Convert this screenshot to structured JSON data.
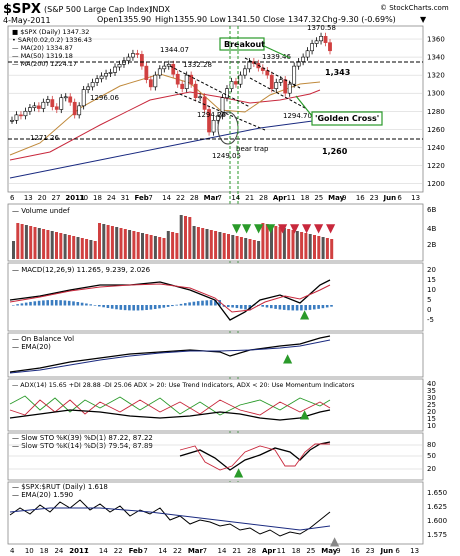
{
  "header": {
    "symbol": "$SPX",
    "name": "(S&P 500 Large Cap Index)",
    "exchange": "INDX",
    "date": "4-May-2011",
    "open_label": "Open",
    "open": "1355.90",
    "high_label": "High",
    "high": "1355.90",
    "low_label": "Low",
    "low": "1341.50",
    "close_label": "Close",
    "close": "1347.32",
    "change_label": "Chg",
    "change": "-9.30 (-0.69%)",
    "watermark": "© StockCharts.com"
  },
  "legend_main": [
    {
      "text": "■ $SPX (Daily) 1347.32",
      "color": "#000000"
    },
    {
      "text": "• SAR(0.02,0.2) 1336.43",
      "color": "#000000"
    },
    {
      "text": "— MA(20) 1334.87",
      "color": "#c08a3c"
    },
    {
      "text": "— MA(50) 1319.18",
      "color": "#c8283c"
    },
    {
      "text": "— MA(200) 1224.17",
      "color": "#1a2a80"
    }
  ],
  "price_annotations": [
    {
      "text": "1344.07"
    },
    {
      "text": "1332.28"
    },
    {
      "text": "1296.06"
    },
    {
      "text": "1294.26"
    },
    {
      "text": "1271.26"
    },
    {
      "text": "1249.05"
    },
    {
      "text": "1339.46"
    },
    {
      "text": "1294.70"
    },
    {
      "text": "1370.58"
    }
  ],
  "callouts": {
    "breakout": "Breakout",
    "golden_cross": "'Golden Cross'",
    "bear_trap": "bear trap",
    "level_1343": "1,343",
    "level_1260": "1,260"
  },
  "price_axis": [
    "1360",
    "1340",
    "1320",
    "1300",
    "1280",
    "1260",
    "1240",
    "1220",
    "1200"
  ],
  "x_labels": [
    {
      "text": "6"
    },
    {
      "text": "13"
    },
    {
      "text": "20"
    },
    {
      "text": "27"
    },
    {
      "text": "2011",
      "bold": true
    },
    {
      "text": "10"
    },
    {
      "text": "18"
    },
    {
      "text": "24"
    },
    {
      "text": "31"
    },
    {
      "text": "Feb",
      "bold": true
    },
    {
      "text": "7"
    },
    {
      "text": "14"
    },
    {
      "text": "22"
    },
    {
      "text": "28"
    },
    {
      "text": "Mar",
      "bold": true
    },
    {
      "text": "7"
    },
    {
      "text": "14"
    },
    {
      "text": "21"
    },
    {
      "text": "28"
    },
    {
      "text": "Apr",
      "bold": true
    },
    {
      "text": "11"
    },
    {
      "text": "18"
    },
    {
      "text": "25"
    },
    {
      "text": "May",
      "bold": true
    },
    {
      "text": "9"
    },
    {
      "text": "16"
    },
    {
      "text": "23"
    },
    {
      "text": "Jun",
      "bold": true
    },
    {
      "text": "6"
    },
    {
      "text": "13"
    }
  ],
  "x_labels_bottom": [
    {
      "text": "4"
    },
    {
      "text": "10"
    },
    {
      "text": "18"
    },
    {
      "text": "24"
    },
    {
      "text": "2011",
      "bold": true
    },
    {
      "text": "7"
    },
    {
      "text": "14"
    },
    {
      "text": "22"
    },
    {
      "text": "Feb",
      "bold": true
    },
    {
      "text": "7"
    },
    {
      "text": "14"
    },
    {
      "text": "22"
    },
    {
      "text": "Mar",
      "bold": true
    },
    {
      "text": "7"
    },
    {
      "text": "14"
    },
    {
      "text": "21"
    },
    {
      "text": "28"
    },
    {
      "text": "Apr",
      "bold": true
    },
    {
      "text": "11"
    },
    {
      "text": "18"
    },
    {
      "text": "25"
    },
    {
      "text": "May",
      "bold": true
    },
    {
      "text": "9"
    },
    {
      "text": "16"
    },
    {
      "text": "23"
    },
    {
      "text": "Jun",
      "bold": true
    },
    {
      "text": "6"
    },
    {
      "text": "13"
    }
  ],
  "panels": {
    "volume": {
      "label": "— Volume undef",
      "axis": [
        "6B",
        "4B",
        "2B"
      ]
    },
    "macd": {
      "label": "— MACD(12,26,9) 11.265, 9.239, 2.026",
      "axis": [
        "20",
        "15",
        "10",
        "5",
        "0",
        "-5"
      ]
    },
    "obv": {
      "label": "— On Balance Vol",
      "sub": "— EMA(20)"
    },
    "adx": {
      "label": "— ADX(14) 15.65 +DI 28.88 -DI 25.06  ADX > 20: Use Trend Indicators, ADX < 20: Use Momentum Indicators",
      "axis": [
        "40",
        "35",
        "30",
        "25",
        "20",
        "15",
        "10"
      ]
    },
    "sto": {
      "label": "— Slow STO %K(39) %D(1) 87.22, 87.22",
      "sub": "— Slow STO %K(14) %D(3) 79.54, 87.89",
      "axis": [
        "80",
        "50",
        "20"
      ]
    },
    "ratio": {
      "label": "— $SPX:$RUT (Daily) 1.618",
      "sub": "— EMA(20) 1.590",
      "axis": [
        "1.650",
        "1.625",
        "1.600",
        "1.575"
      ]
    }
  },
  "colors": {
    "up": "#d04040",
    "down": "#404040",
    "green": "#2a9a2a",
    "grid": "#cccccc",
    "dark_bg": "#333333"
  },
  "chart_data": {
    "type": "line",
    "title": "$SPX (S&P 500 Large Cap Index) INDX",
    "ylim": [
      1190,
      1375
    ],
    "key_points": [
      {
        "label": "1344.07",
        "value": 1344.07
      },
      {
        "label": "1332.28",
        "value": 1332.28
      },
      {
        "label": "1296.06",
        "value": 1296.06
      },
      {
        "label": "1294.26",
        "value": 1294.26
      },
      {
        "label": "1271.26",
        "value": 1271.26
      },
      {
        "label": "1249.05",
        "value": 1249.05
      },
      {
        "label": "1339.46",
        "value": 1339.46
      },
      {
        "label": "1294.70",
        "value": 1294.7
      },
      {
        "label": "1370.58",
        "value": 1370.58
      }
    ],
    "support_levels": [
      1343,
      1260
    ],
    "closes": [
      1270,
      1276,
      1275,
      1280,
      1284,
      1286,
      1283,
      1290,
      1293,
      1285,
      1282,
      1295,
      1296,
      1290,
      1276,
      1286,
      1304,
      1307,
      1312,
      1316,
      1319,
      1322,
      1323,
      1329,
      1332,
      1336,
      1340,
      1344,
      1343,
      1330,
      1315,
      1307,
      1320,
      1327,
      1330,
      1332,
      1321,
      1310,
      1305,
      1320,
      1310,
      1295,
      1296,
      1282,
      1257,
      1270,
      1275,
      1295,
      1305,
      1313,
      1310,
      1320,
      1327,
      1335,
      1333,
      1328,
      1325,
      1320,
      1305,
      1312,
      1315,
      1300,
      1310,
      1330,
      1335,
      1340,
      1347,
      1355,
      1358,
      1363,
      1356,
      1347
    ]
  }
}
